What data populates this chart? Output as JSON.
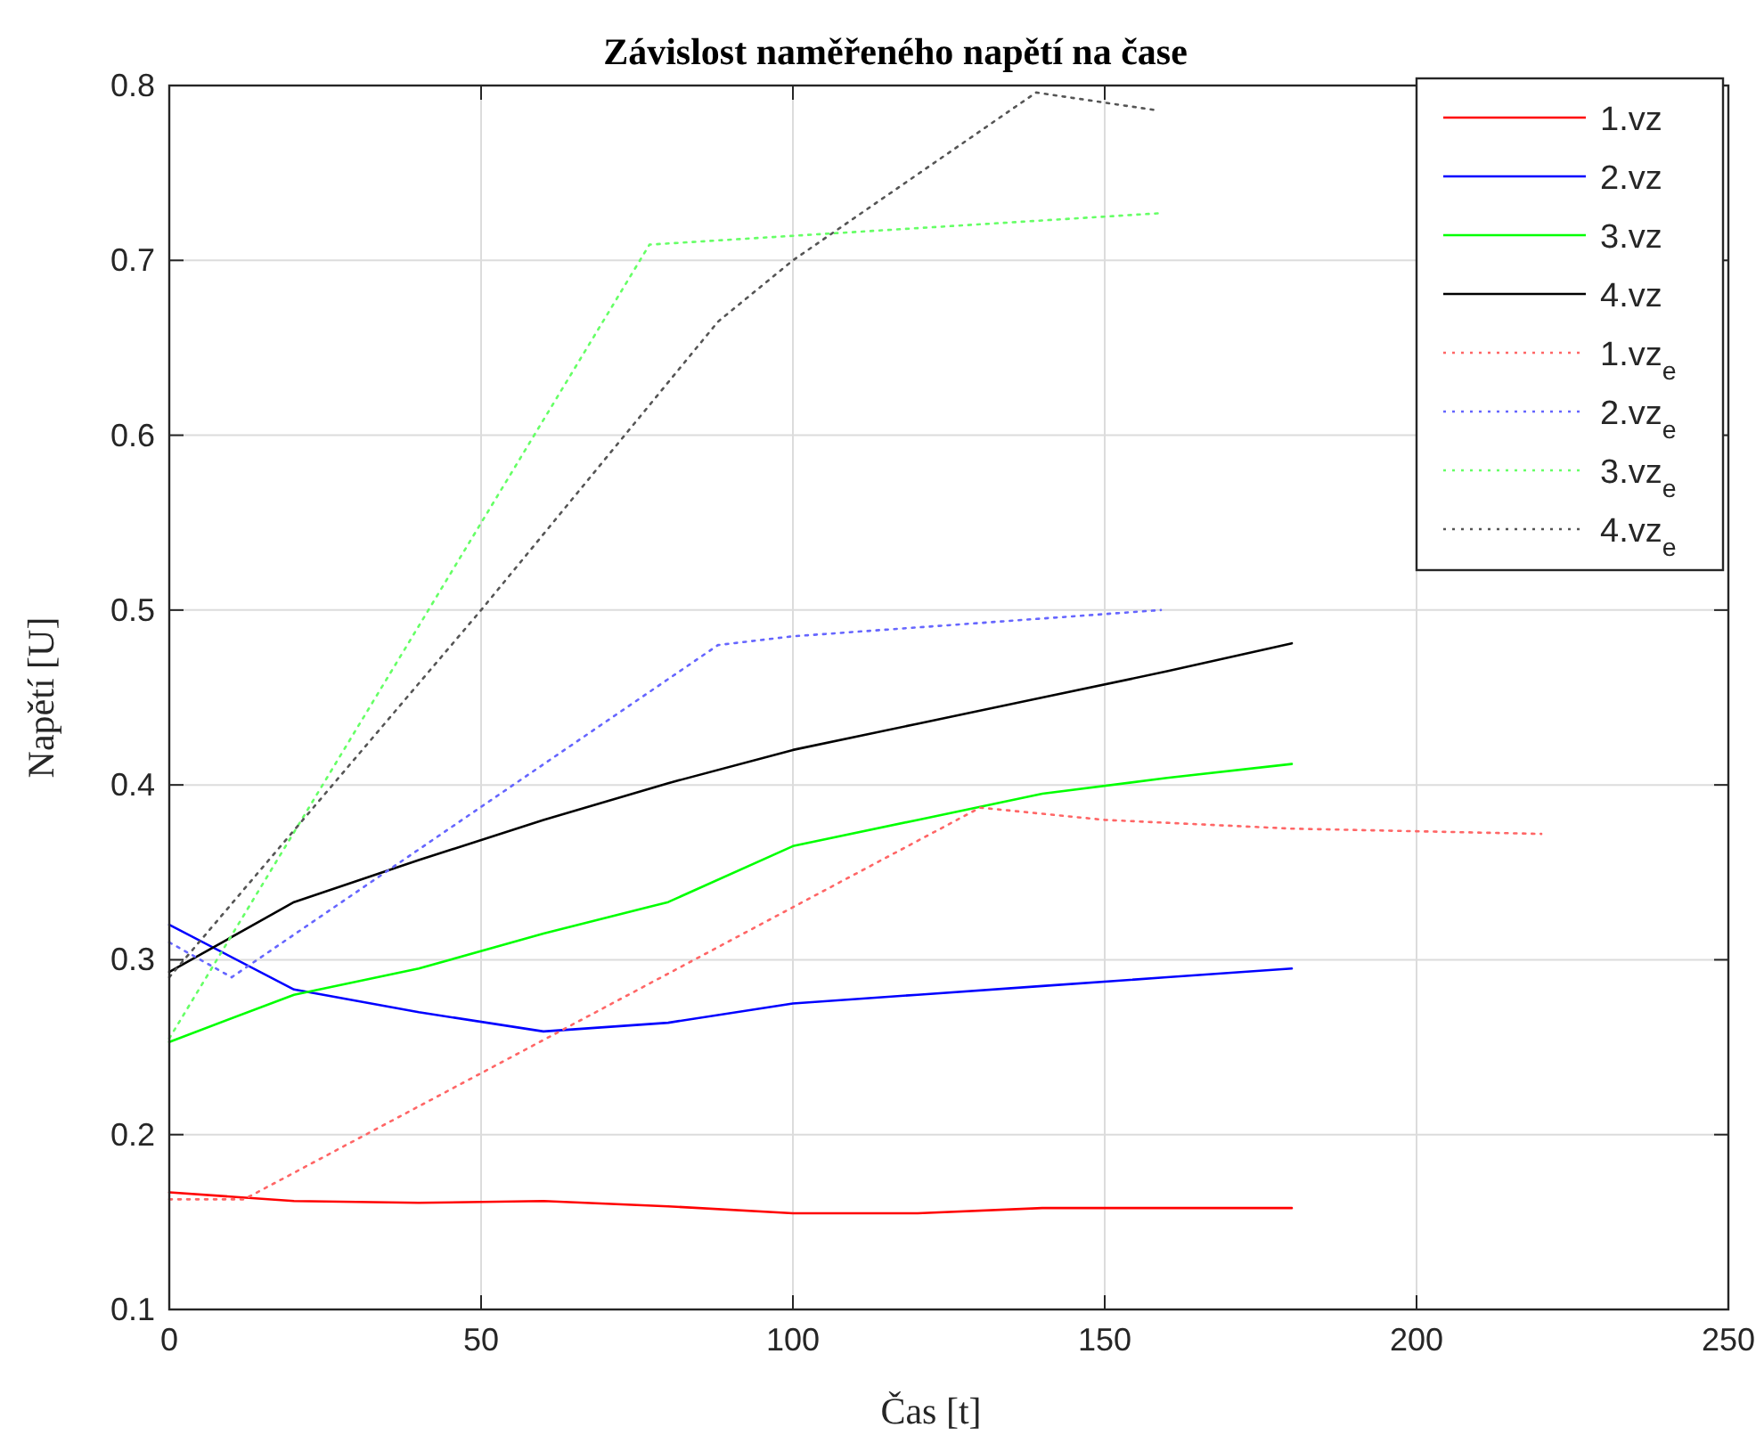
{
  "chart_data": {
    "type": "line",
    "title": "Závislost naměřeného napětí na čase",
    "xlabel": "Čas [t]",
    "ylabel": "Napětí [U]",
    "xlim": [
      0,
      250
    ],
    "xticks": [
      0,
      50,
      100,
      150,
      200,
      250
    ],
    "ylim": [
      0.1,
      0.8
    ],
    "yticks": [
      0.1,
      0.2,
      0.3,
      0.4,
      0.5,
      0.6,
      0.7,
      0.8
    ],
    "grid": true,
    "legend": "top right",
    "series": [
      {
        "name": "1.vz",
        "color": "#ff0000",
        "line_style": "solid",
        "x": [
          0,
          20,
          40,
          60,
          80,
          100,
          120,
          140,
          160,
          180
        ],
        "values": [
          0.167,
          0.162,
          0.161,
          0.162,
          0.159,
          0.155,
          0.155,
          0.158,
          0.158,
          0.158
        ]
      },
      {
        "name": "2.vz",
        "color": "#0000ff",
        "line_style": "solid",
        "x": [
          0,
          20,
          40,
          60,
          80,
          100,
          120,
          140,
          160,
          180
        ],
        "values": [
          0.32,
          0.283,
          0.27,
          0.259,
          0.264,
          0.275,
          0.28,
          0.285,
          0.29,
          0.295
        ]
      },
      {
        "name": "3.vz",
        "color": "#00ff00",
        "line_style": "solid",
        "x": [
          0,
          20,
          40,
          60,
          80,
          100,
          120,
          140,
          160,
          180
        ],
        "values": [
          0.253,
          0.28,
          0.295,
          0.315,
          0.333,
          0.365,
          0.38,
          0.395,
          0.404,
          0.412
        ]
      },
      {
        "name": "4.vz",
        "color": "#000000",
        "line_style": "solid",
        "x": [
          0,
          20,
          40,
          60,
          80,
          100,
          120,
          140,
          160,
          180
        ],
        "values": [
          0.293,
          0.333,
          0.357,
          0.38,
          0.401,
          0.42,
          0.435,
          0.45,
          0.465,
          0.481
        ]
      },
      {
        "name": "1.vz$_{e}$",
        "color": "#ff6666",
        "line_style": "dotted",
        "x": [
          0,
          12,
          130,
          150,
          180,
          220
        ],
        "values": [
          0.163,
          0.163,
          0.387,
          0.38,
          0.375,
          0.372
        ]
      },
      {
        "name": "2.vz$_{e}$",
        "color": "#6666ff",
        "line_style": "dotted",
        "x": [
          0,
          10,
          88,
          100,
          159
        ],
        "values": [
          0.31,
          0.29,
          0.48,
          0.485,
          0.5
        ]
      },
      {
        "name": "3.vz$_{e}$",
        "color": "#66ff66",
        "line_style": "dotted",
        "x": [
          0,
          77,
          159
        ],
        "values": [
          0.255,
          0.709,
          0.727
        ]
      },
      {
        "name": "4.vz$_{e}$",
        "color": "#555555",
        "line_style": "dotted",
        "x": [
          0,
          50,
          88,
          100,
          139,
          158
        ],
        "values": [
          0.29,
          0.5,
          0.665,
          0.7,
          0.796,
          0.786
        ]
      }
    ]
  }
}
